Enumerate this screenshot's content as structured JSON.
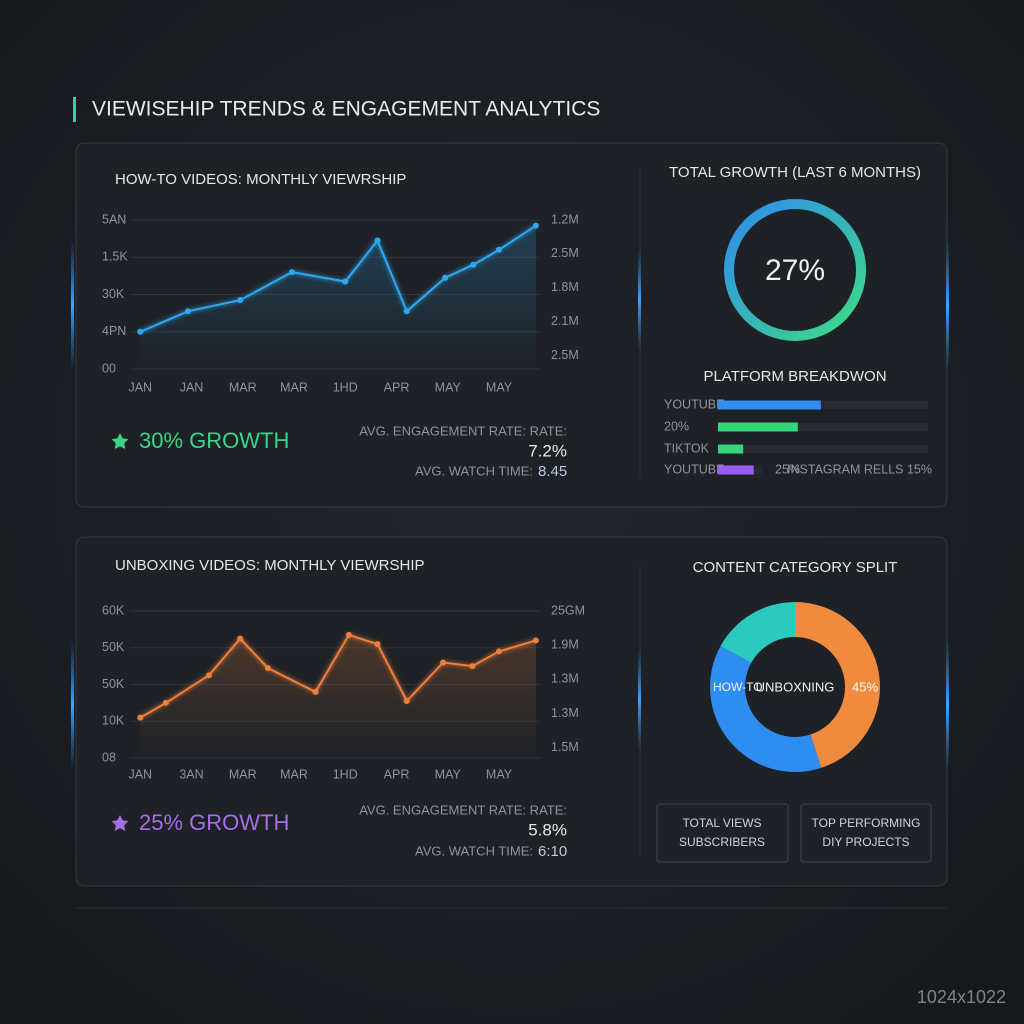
{
  "header": {
    "title": "VIEWISEHIP TRENDS & ENGAGEMENT ANALYTICS"
  },
  "chart_data": [
    {
      "type": "line",
      "title": "HOW-TO VIDEOS: MONTHLY VIEWRSHIP",
      "color": "#2ea8f2",
      "x": [
        0,
        0.93,
        1.95,
        2.96,
        4.0,
        4.63,
        5.2,
        5.95,
        6.5,
        7.0,
        7.72
      ],
      "values": [
        1.0,
        1.55,
        1.85,
        2.6,
        2.35,
        3.45,
        1.55,
        2.45,
        2.8,
        3.2,
        3.85
      ],
      "xlim": [
        -0.2,
        7.8
      ],
      "xticks": [
        {
          "value": 0,
          "label": "JAN"
        },
        {
          "value": 1,
          "label": "JAN"
        },
        {
          "value": 2,
          "label": "MAR"
        },
        {
          "value": 3,
          "label": "MAR"
        },
        {
          "value": 4,
          "label": "1HD"
        },
        {
          "value": 5,
          "label": "APR"
        },
        {
          "value": 6,
          "label": "MAY"
        },
        {
          "value": 7,
          "label": "MAY"
        }
      ],
      "ylim": [
        0,
        4
      ],
      "yticks": [
        {
          "value": 4,
          "label": "5AN"
        },
        {
          "value": 3,
          "label": "1.5K"
        },
        {
          "value": 2,
          "label": "30K"
        },
        {
          "value": 1,
          "label": "4PN"
        },
        {
          "value": 0,
          "label": "00"
        }
      ],
      "y2lim": [
        -0.4,
        4
      ],
      "y2ticks": [
        {
          "value": 4,
          "label": "1.2M"
        },
        {
          "value": 3,
          "label": "2.5M"
        },
        {
          "value": 2,
          "label": "1.8M"
        },
        {
          "value": 1,
          "label": "2.1M"
        },
        {
          "value": 0,
          "label": "2.5M"
        }
      ],
      "grid": true
    },
    {
      "type": "gauge",
      "title": "TOTAL GROWTH (LAST 6 MONTHS)",
      "value": 27,
      "value_label": "27%",
      "colors": [
        "#2f8cf0",
        "#3ddc84"
      ]
    },
    {
      "type": "bar",
      "title": "PLATFORM BREAKDWON",
      "categories": [
        "YOUTUBE",
        "20%",
        "TIKTOK",
        "YOUTUBE"
      ],
      "values": [
        49,
        38,
        12,
        17
      ],
      "colors": [
        "#2f8cf0",
        "#35d67a",
        "#35d67a",
        "#9a5cf0"
      ],
      "xlim": [
        0,
        100
      ],
      "annotations": [
        "25%",
        "INSTAGRAM RELLS 15%"
      ]
    },
    {
      "type": "line",
      "title": "UNBOXING VIDEOS: MONTHLY VIEWRSHIP",
      "color": "#ef7f3a",
      "x": [
        0,
        0.5,
        1.34,
        1.95,
        2.49,
        3.42,
        4.07,
        4.63,
        5.2,
        5.91,
        6.48,
        7.0,
        7.72
      ],
      "values": [
        1.1,
        1.5,
        2.25,
        3.25,
        2.45,
        1.8,
        3.35,
        3.1,
        1.55,
        2.6,
        2.5,
        2.9,
        3.2
      ],
      "xlim": [
        -0.2,
        7.8
      ],
      "xticks": [
        {
          "value": 0,
          "label": "JAN"
        },
        {
          "value": 1,
          "label": "3AN"
        },
        {
          "value": 2,
          "label": "MAR"
        },
        {
          "value": 3,
          "label": "MAR"
        },
        {
          "value": 4,
          "label": "1HD"
        },
        {
          "value": 5,
          "label": "APR"
        },
        {
          "value": 6,
          "label": "MAY"
        },
        {
          "value": 7,
          "label": "MAY"
        }
      ],
      "ylim": [
        0,
        4
      ],
      "yticks": [
        {
          "value": 4,
          "label": "60K"
        },
        {
          "value": 3,
          "label": "50K"
        },
        {
          "value": 2,
          "label": "50K"
        },
        {
          "value": 1,
          "label": "10K"
        },
        {
          "value": 0,
          "label": "08"
        }
      ],
      "y2lim": [
        -0.3,
        4
      ],
      "y2ticks": [
        {
          "value": 4,
          "label": "25GM"
        },
        {
          "value": 3,
          "label": "1.9M"
        },
        {
          "value": 2,
          "label": "1.3M"
        },
        {
          "value": 1,
          "label": "1.3M"
        },
        {
          "value": 0,
          "label": "1.5M"
        }
      ],
      "grid": true
    },
    {
      "type": "pie",
      "title": "CONTENT CATEGORY SPLIT",
      "categories": [
        "UNBOXNING",
        "HOW-TO",
        null
      ],
      "values": [
        45,
        38,
        17
      ],
      "value_labels": [
        "45%",
        null,
        null
      ],
      "colors": [
        "#f08a3c",
        "#2f8cf0",
        "#2bc9c0"
      ]
    }
  ],
  "panels": [
    {
      "growth": "30% GROWTH",
      "engagement_label": "AVG. ENGAGEMENT RATE: RATE:",
      "engagement_value": "7.2%",
      "watch_label": "AVG. WATCH TIME:",
      "watch_value": "8.45"
    },
    {
      "growth": "25% GROWTH",
      "engagement_label": "AVG. ENGAGEMENT RATE: RATE:",
      "engagement_value": "5.8%",
      "watch_label": "AVG. WATCH TIME:",
      "watch_value": "6:10"
    }
  ],
  "buttons": [
    {
      "lines": [
        "TOTAL VIEWS",
        "SUBSCRIBERS"
      ]
    },
    {
      "lines": [
        "TOP PERFORMING",
        "DIY PROJECTS"
      ]
    }
  ],
  "watermark": "1024x1022"
}
